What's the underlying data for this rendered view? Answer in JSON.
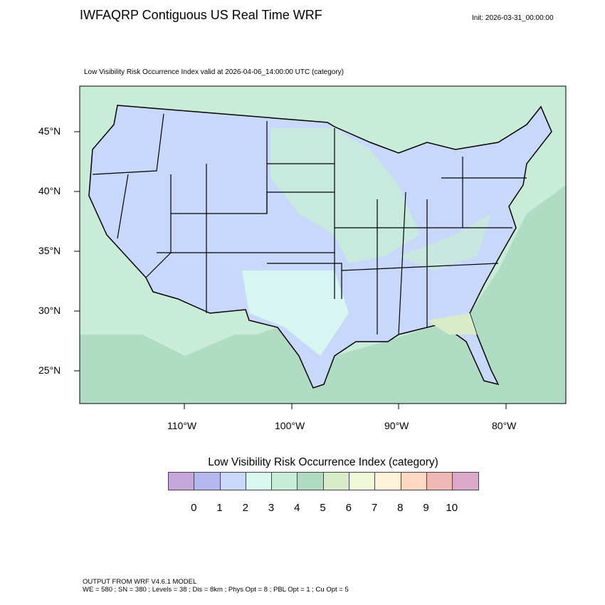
{
  "header": {
    "title": "IWFAQRP Contiguous US Real Time WRF",
    "init": "Init: 2026-03-31_00:00:00"
  },
  "plot": {
    "subtitle": "Low Visibility Risk Occurrence Index valid at 2026-04-06_14:00:00 UTC   (category)",
    "lon_labels": [
      "110°W",
      "100°W",
      "90°W",
      "80°W"
    ],
    "lat_labels": [
      "45°N",
      "40°N",
      "35°N",
      "30°N",
      "25°N"
    ],
    "colors": {
      "land_dominant": "#c8d8fa",
      "ocean": "#b0dcc4",
      "mexico_canada": "#c8ecd8"
    }
  },
  "colorbar": {
    "title": "Low Visibility Risk Occurrence Index  (category)",
    "labels": [
      "0",
      "1",
      "2",
      "3",
      "4",
      "5",
      "6",
      "7",
      "8",
      "9",
      "10"
    ],
    "colors": [
      "#c8a8dc",
      "#b4b8ee",
      "#c8d8fa",
      "#d8f8f0",
      "#c8ecd8",
      "#b0dcc4",
      "#d8ecc8",
      "#f0f8d8",
      "#fff2d8",
      "#ffd8c4",
      "#f0b8b4",
      "#dca8c8"
    ]
  },
  "footer": {
    "line1": "OUTPUT FROM WRF V4.6.1 MODEL",
    "line2": "WE = 580 ; SN = 380 ; Levels = 38 ; Dis = 8km ; Phys Opt = 8 ; PBL Opt = 1 ; Cu Opt = 5"
  }
}
